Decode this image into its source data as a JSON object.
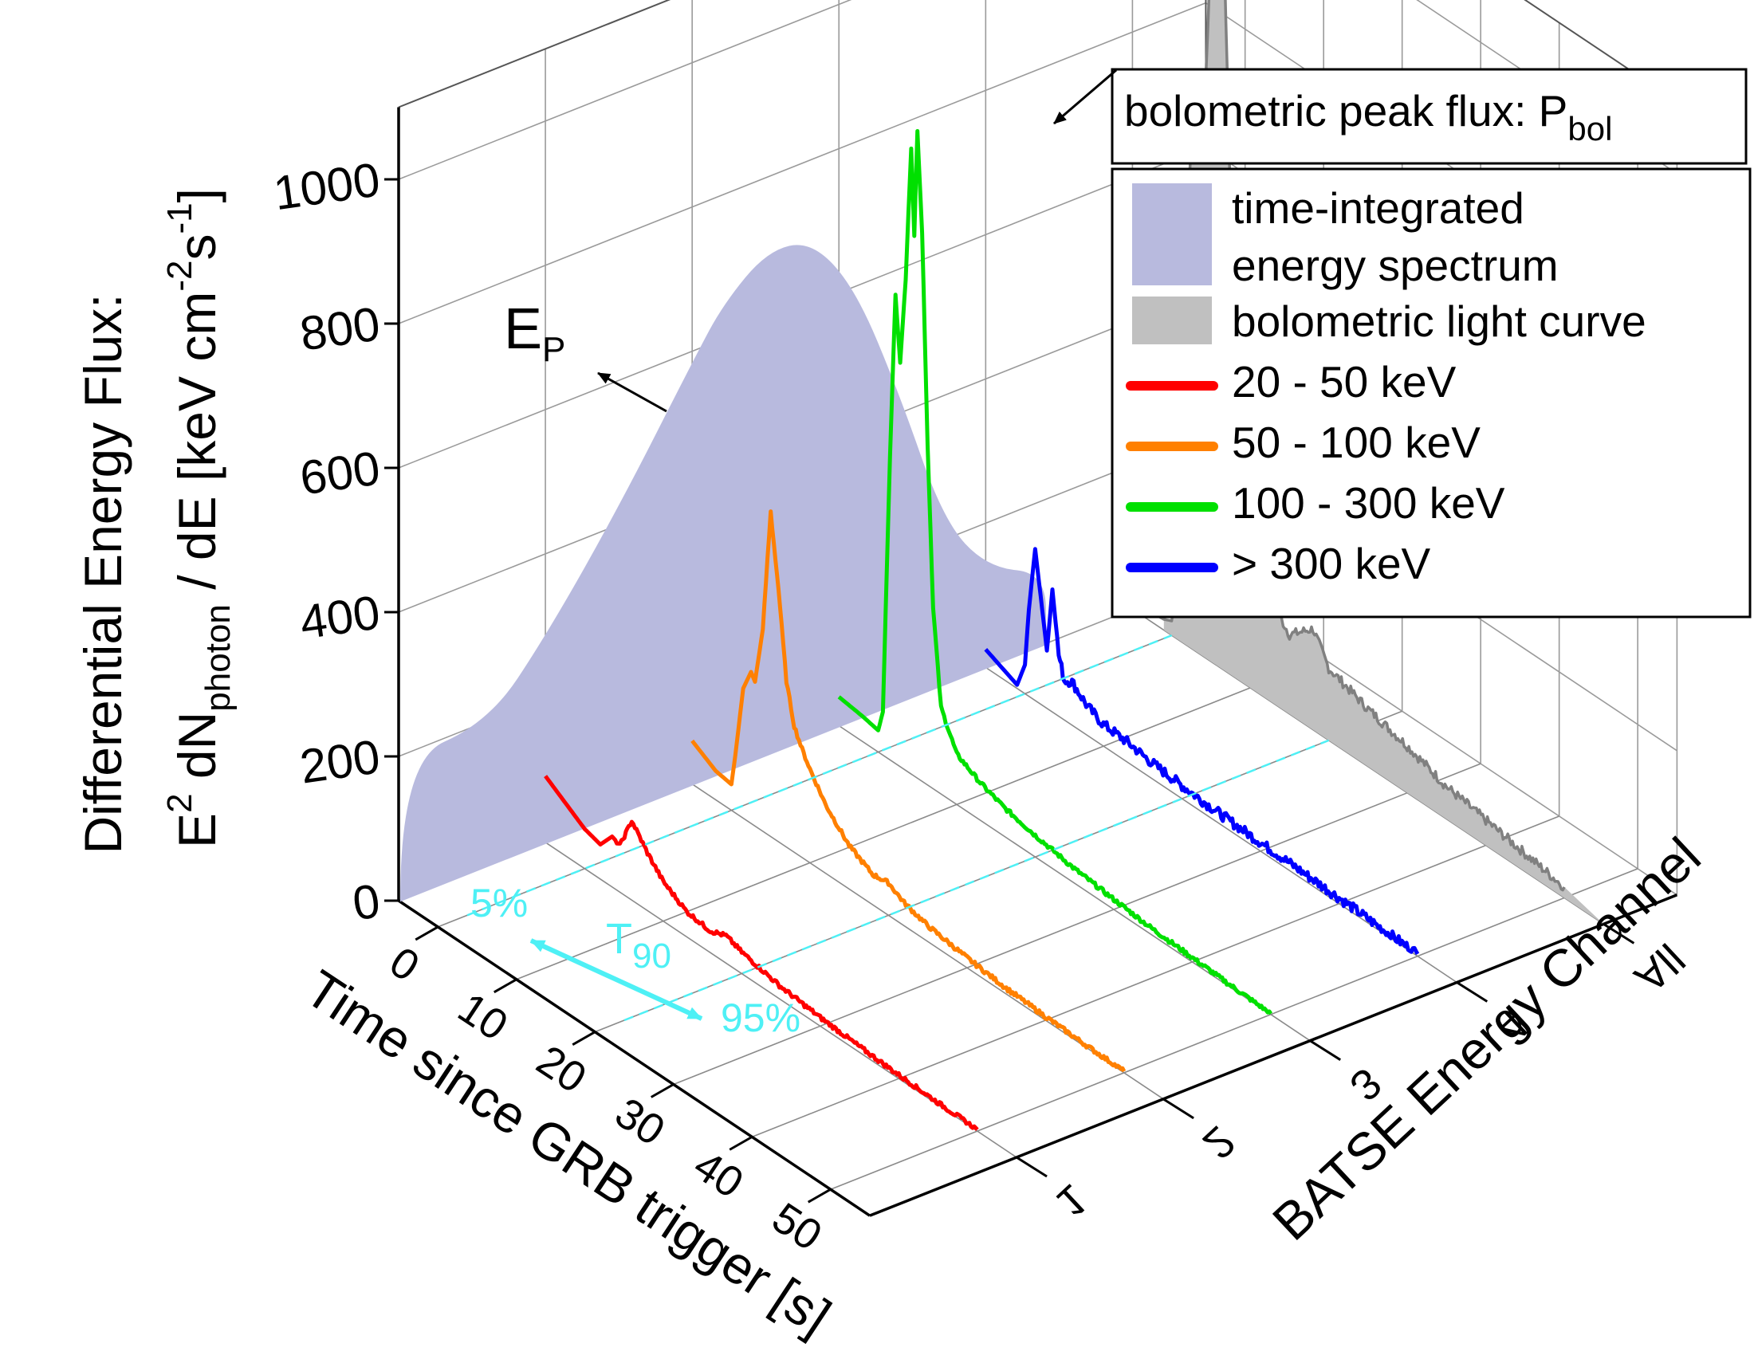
{
  "chart_data": {
    "type": "3d-waterfall",
    "z_axis": {
      "label_line1": "Differential Energy Flux:",
      "label_line2_parts": [
        "E",
        "2",
        " dN",
        "photon",
        " / dE [keV cm",
        "-2",
        "s",
        "-1",
        "]"
      ],
      "ticks": [
        0,
        200,
        400,
        600,
        800,
        1000
      ],
      "range": [
        0,
        1100
      ]
    },
    "x_axis": {
      "label": "Time since GRB trigger [s]",
      "ticks": [
        0,
        10,
        20,
        30,
        40,
        50
      ],
      "range": [
        -5,
        55
      ]
    },
    "y_axis": {
      "label": "BATSE Energy Channel",
      "ticks": [
        "1",
        "2",
        "3",
        "4",
        "All"
      ]
    },
    "legend": {
      "peak_box": {
        "text": "bolometric peak flux: P",
        "subscript": "bol"
      },
      "items": [
        {
          "label_lines": [
            "time-integrated",
            "energy spectrum"
          ],
          "color": "#b8bade",
          "kind": "patch"
        },
        {
          "label_lines": [
            "bolometric light curve"
          ],
          "color": "#c0c0c0",
          "kind": "patch"
        },
        {
          "label_lines": [
            "20 - 50 keV"
          ],
          "color": "#ff0000",
          "kind": "line"
        },
        {
          "label_lines": [
            "50 - 100 keV"
          ],
          "color": "#ff8000",
          "kind": "line"
        },
        {
          "label_lines": [
            "100 - 300 keV"
          ],
          "color": "#00e000",
          "kind": "line"
        },
        {
          "label_lines": [
            "> 300 keV"
          ],
          "color": "#0000ff",
          "kind": "line"
        }
      ]
    },
    "annotations": {
      "ep": {
        "text": "E",
        "subscript": "P"
      },
      "t90": {
        "text": "T",
        "subscript": "90"
      },
      "p5": "5%",
      "p95": "95%"
    },
    "channel_colors": {
      "1": "#ff0000",
      "2": "#ff8000",
      "3": "#00e000",
      "4": "#0000ff",
      "All": "#808080"
    },
    "spectrum_curve": {
      "description_values": "time-integrated E^2 dN/dE along the channel axis, peak near channel 2",
      "points": [
        [
          0.6,
          200
        ],
        [
          1.0,
          290
        ],
        [
          1.5,
          430
        ],
        [
          2.0,
          590
        ],
        [
          2.2,
          650
        ],
        [
          2.5,
          700
        ],
        [
          2.8,
          690
        ],
        [
          3.1,
          600
        ],
        [
          3.4,
          430
        ],
        [
          3.7,
          230
        ],
        [
          4.0,
          140
        ],
        [
          4.4,
          100
        ]
      ]
    },
    "series": [
      {
        "channel": "1",
        "band": "20 - 50 keV",
        "color": "#ff0000",
        "points": [
          [
            -5,
            92
          ],
          [
            0,
            55
          ],
          [
            2,
            48
          ],
          [
            3.5,
            70
          ],
          [
            4.5,
            65
          ],
          [
            6,
            110
          ],
          [
            7,
            95
          ],
          [
            8,
            80
          ],
          [
            10,
            55
          ],
          [
            13,
            35
          ],
          [
            16,
            30
          ],
          [
            18,
            38
          ],
          [
            20,
            30
          ],
          [
            25,
            18
          ],
          [
            30,
            12
          ],
          [
            35,
            8
          ],
          [
            40,
            5
          ],
          [
            45,
            3
          ],
          [
            50,
            2
          ]
        ]
      },
      {
        "channel": "2",
        "band": "50 - 100 keV",
        "color": "#ff8000",
        "points": [
          [
            -5,
            60
          ],
          [
            -2,
            40
          ],
          [
            0,
            36
          ],
          [
            0.5,
            80
          ],
          [
            1.5,
            180
          ],
          [
            2.5,
            210
          ],
          [
            3,
            200
          ],
          [
            4,
            280
          ],
          [
            5,
            450
          ],
          [
            6,
            350
          ],
          [
            7,
            230
          ],
          [
            8,
            175
          ],
          [
            9,
            150
          ],
          [
            10,
            130
          ],
          [
            12,
            95
          ],
          [
            15,
            60
          ],
          [
            18,
            42
          ],
          [
            20,
            45
          ],
          [
            22,
            32
          ],
          [
            25,
            22
          ],
          [
            30,
            14
          ],
          [
            35,
            8
          ],
          [
            40,
            5
          ],
          [
            45,
            3
          ],
          [
            50,
            2
          ]
        ]
      },
      {
        "channel": "3",
        "band": "100 - 300 keV",
        "color": "#00e000",
        "points": [
          [
            -5,
            40
          ],
          [
            -2,
            35
          ],
          [
            0,
            30
          ],
          [
            0.6,
            60
          ],
          [
            1.5,
            420
          ],
          [
            2.2,
            650
          ],
          [
            2.8,
            560
          ],
          [
            3.5,
            680
          ],
          [
            4.2,
            870
          ],
          [
            4.6,
            750
          ],
          [
            5,
            900
          ],
          [
            5.6,
            760
          ],
          [
            6.3,
            470
          ],
          [
            7,
            250
          ],
          [
            8,
            120
          ],
          [
            10,
            70
          ],
          [
            13,
            52
          ],
          [
            16,
            40
          ],
          [
            20,
            30
          ],
          [
            25,
            20
          ],
          [
            30,
            14
          ],
          [
            35,
            9
          ],
          [
            40,
            6
          ],
          [
            45,
            3
          ],
          [
            50,
            1
          ]
        ]
      },
      {
        "channel": "4",
        "band": "> 300 keV",
        "color": "#0000ff",
        "points": [
          [
            -5,
            25
          ],
          [
            -1,
            5
          ],
          [
            0,
            40
          ],
          [
            0.5,
            120
          ],
          [
            1.3,
            210
          ],
          [
            2,
            150
          ],
          [
            2.8,
            80
          ],
          [
            3.5,
            170
          ],
          [
            4.3,
            85
          ],
          [
            5,
            55
          ],
          [
            6,
            60
          ],
          [
            8,
            40
          ],
          [
            10,
            30
          ],
          [
            13,
            28
          ],
          [
            16,
            22
          ],
          [
            20,
            18
          ],
          [
            25,
            14
          ],
          [
            30,
            12
          ],
          [
            35,
            10
          ],
          [
            40,
            8
          ],
          [
            45,
            5
          ],
          [
            50,
            3
          ]
        ]
      },
      {
        "channel": "All",
        "band": "bolometric light curve",
        "color": "#808080",
        "points": [
          [
            -5,
            10
          ],
          [
            -1,
            15
          ],
          [
            0,
            20
          ],
          [
            1,
            100
          ],
          [
            2,
            600
          ],
          [
            3,
            800
          ],
          [
            4,
            700
          ],
          [
            5,
            1000
          ],
          [
            5.5,
            950
          ],
          [
            6,
            1150
          ],
          [
            6.7,
            990
          ],
          [
            7.5,
            650
          ],
          [
            8.5,
            420
          ],
          [
            10,
            230
          ],
          [
            12,
            150
          ],
          [
            15,
            110
          ],
          [
            18,
            140
          ],
          [
            20,
            100
          ],
          [
            25,
            80
          ],
          [
            30,
            65
          ],
          [
            35,
            45
          ],
          [
            40,
            35
          ],
          [
            45,
            25
          ],
          [
            50,
            15
          ]
        ]
      }
    ]
  }
}
